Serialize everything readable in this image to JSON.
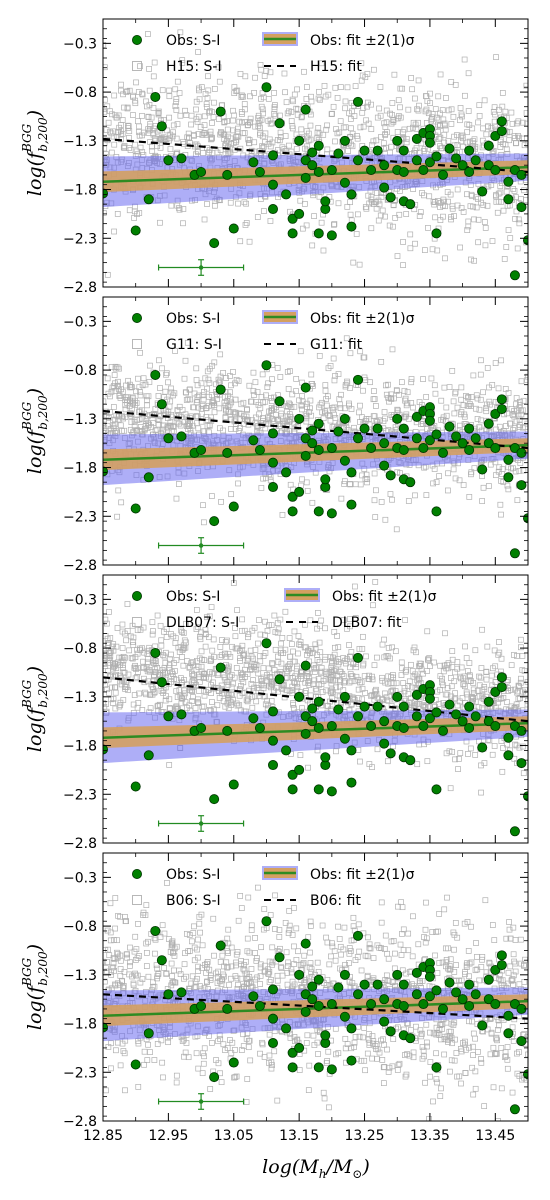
{
  "chart_data": {
    "type": "scatter",
    "xlim": [
      12.85,
      13.5
    ],
    "ylim": [
      -2.8,
      -0.05
    ],
    "xticks": [
      "12.85",
      "12.95",
      "13.05",
      "13.15",
      "13.25",
      "13.35",
      "13.45"
    ],
    "xtick_values": [
      12.85,
      12.95,
      13.05,
      13.15,
      13.25,
      13.35,
      13.45
    ],
    "yticks": [
      "−0.3",
      "−0.8",
      "−1.3",
      "−1.8",
      "−2.3",
      "−2.8"
    ],
    "ytick_values": [
      -0.3,
      -0.8,
      -1.3,
      -1.8,
      -2.3,
      -2.8
    ],
    "xlabel": {
      "base": "log(",
      "var": "M",
      "sub": "h",
      "mid": "/",
      "var2": "M",
      "sub2": "⊙",
      "end": ")"
    },
    "ylabel": {
      "base": "log(",
      "var": "f",
      "sub": "b,200",
      "sup": "BGG",
      "end": ")"
    },
    "grid": false,
    "legend_position": "top",
    "observed": {
      "name": "Obs: S-I",
      "color": "#008000",
      "points": [
        [
          12.85,
          -1.84
        ],
        [
          12.9,
          -2.22
        ],
        [
          12.92,
          -1.9
        ],
        [
          12.93,
          -0.85
        ],
        [
          12.94,
          -1.15
        ],
        [
          12.95,
          -1.5
        ],
        [
          12.97,
          -1.48
        ],
        [
          12.99,
          -1.65
        ],
        [
          13.0,
          -1.62
        ],
        [
          13.02,
          -2.35
        ],
        [
          13.03,
          -1.0
        ],
        [
          13.04,
          -1.65
        ],
        [
          13.05,
          -2.2
        ],
        [
          13.08,
          -1.52
        ],
        [
          13.09,
          -1.62
        ],
        [
          13.1,
          -0.75
        ],
        [
          13.11,
          -1.45
        ],
        [
          13.11,
          -1.75
        ],
        [
          13.11,
          -2.0
        ],
        [
          13.12,
          -1.12
        ],
        [
          13.13,
          -1.85
        ],
        [
          13.14,
          -2.1
        ],
        [
          13.14,
          -2.25
        ],
        [
          13.15,
          -2.05
        ],
        [
          13.15,
          -1.3
        ],
        [
          13.16,
          -0.98
        ],
        [
          13.16,
          -1.5
        ],
        [
          13.16,
          -1.68
        ],
        [
          13.17,
          -1.42
        ],
        [
          13.17,
          -1.55
        ],
        [
          13.18,
          -1.35
        ],
        [
          13.18,
          -1.62
        ],
        [
          13.18,
          -2.25
        ],
        [
          13.19,
          -2.0
        ],
        [
          13.19,
          -1.92
        ],
        [
          13.2,
          -1.6
        ],
        [
          13.2,
          -2.27
        ],
        [
          13.21,
          -1.43
        ],
        [
          13.22,
          -1.3
        ],
        [
          13.22,
          -1.73
        ],
        [
          13.23,
          -2.18
        ],
        [
          13.23,
          -1.85
        ],
        [
          13.24,
          -1.5
        ],
        [
          13.24,
          -0.9
        ],
        [
          13.25,
          -1.4
        ],
        [
          13.26,
          -1.6
        ],
        [
          13.27,
          -1.4
        ],
        [
          13.28,
          -1.55
        ],
        [
          13.28,
          -1.78
        ],
        [
          13.29,
          -1.88
        ],
        [
          13.3,
          -1.6
        ],
        [
          13.3,
          -1.3
        ],
        [
          13.31,
          -1.4
        ],
        [
          13.31,
          -1.62
        ],
        [
          13.31,
          -1.92
        ],
        [
          13.32,
          -1.95
        ],
        [
          13.33,
          -1.28
        ],
        [
          13.33,
          -1.5
        ],
        [
          13.34,
          -1.22
        ],
        [
          13.34,
          -1.6
        ],
        [
          13.35,
          -1.18
        ],
        [
          13.35,
          -1.25
        ],
        [
          13.35,
          -1.32
        ],
        [
          13.35,
          -1.52
        ],
        [
          13.36,
          -1.46
        ],
        [
          13.36,
          -2.25
        ],
        [
          13.37,
          -1.65
        ],
        [
          13.38,
          -1.38
        ],
        [
          13.39,
          -1.48
        ],
        [
          13.4,
          -1.55
        ],
        [
          13.41,
          -1.4
        ],
        [
          13.41,
          -1.62
        ],
        [
          13.42,
          -1.5
        ],
        [
          13.43,
          -1.82
        ],
        [
          13.44,
          -1.55
        ],
        [
          13.44,
          -1.35
        ],
        [
          13.45,
          -1.25
        ],
        [
          13.45,
          -1.6
        ],
        [
          13.46,
          -1.2
        ],
        [
          13.46,
          -1.1
        ],
        [
          13.47,
          -1.9
        ],
        [
          13.47,
          -1.72
        ],
        [
          13.48,
          -2.68
        ],
        [
          13.48,
          -1.6
        ],
        [
          13.49,
          -1.65
        ],
        [
          13.49,
          -1.98
        ],
        [
          13.5,
          -2.32
        ]
      ]
    },
    "error_bar": {
      "x": 13.0,
      "y": -2.6,
      "xerr": 0.065,
      "yerr": 0.08
    },
    "panels": [
      {
        "sim_label": "H15: S-I",
        "fit_label": "H15: fit",
        "obs_fit_label": "Obs: fit ±2(1)σ",
        "sim_fit": {
          "x": [
            12.85,
            13.5
          ],
          "y": [
            -1.28,
            -1.62
          ]
        },
        "sim_center": [
          -1.35,
          -1.55
        ],
        "sim_spread": 0.38
      },
      {
        "sim_label": "G11: S-I",
        "fit_label": "G11: fit",
        "obs_fit_label": "Obs: fit ±2(1)σ",
        "sim_fit": {
          "x": [
            12.85,
            13.5
          ],
          "y": [
            -1.22,
            -1.6
          ]
        },
        "sim_center": [
          -1.3,
          -1.5
        ],
        "sim_spread": 0.3
      },
      {
        "sim_label": "DLB07: S-I",
        "fit_label": "DLB07: fit",
        "obs_fit_label": "Obs: fit ±2(1)σ",
        "sim_fit": {
          "x": [
            12.85,
            13.5
          ],
          "y": [
            -1.1,
            -1.55
          ]
        },
        "sim_center": [
          -1.0,
          -1.4
        ],
        "sim_spread": 0.3
      },
      {
        "sim_label": "B06: S-I",
        "fit_label": "B06: fit",
        "obs_fit_label": "Obs: fit ±2(1)σ",
        "sim_fit": {
          "x": [
            12.85,
            13.5
          ],
          "y": [
            -1.5,
            -1.75
          ]
        },
        "sim_center": [
          -1.45,
          -1.65
        ],
        "sim_spread": 0.4
      }
    ],
    "obs_fit": {
      "x": [
        12.85,
        13.5
      ],
      "y": [
        -1.72,
        -1.57
      ],
      "sigma1": 0.07,
      "sigma2": 0.14,
      "fan": 0.12
    },
    "colors": {
      "obs_points": "#008000",
      "obs_edge": "#003300",
      "obs_fit_line": "#2e8b22",
      "band_1sigma": "#d4a060",
      "band_2sigma": "#6c6cf0",
      "sim_points": "#b0b0b0",
      "sim_fit_line": "#000000",
      "error_bar": "#228b22"
    }
  }
}
